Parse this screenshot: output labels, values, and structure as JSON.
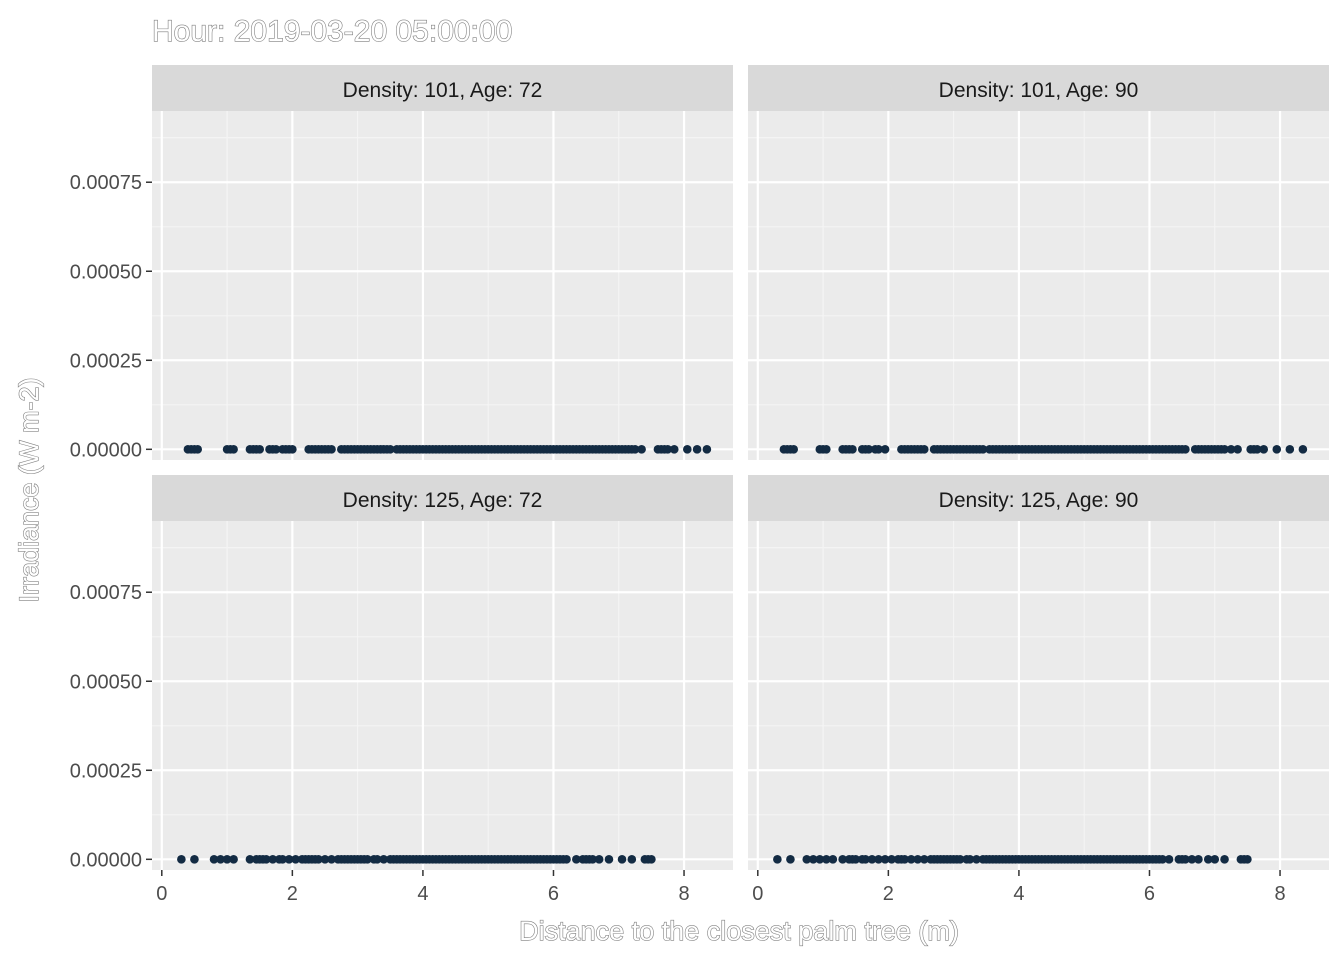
{
  "chart_data": {
    "type": "scatter",
    "title": "Hour: 2019-03-20 05:00:00",
    "xlabel": "Distance to the closest palm tree (m)",
    "ylabel": "Irradiance (W m-2)",
    "xlim": [
      -0.15,
      8.75
    ],
    "ylim": [
      -3e-05,
      0.00095
    ],
    "x_ticks": [
      0,
      2,
      4,
      6,
      8
    ],
    "x_tick_labels": [
      "0",
      "2",
      "4",
      "6",
      "8"
    ],
    "y_ticks": [
      0,
      0.00025,
      0.0005,
      0.00075
    ],
    "y_tick_labels": [
      "0.00000",
      "0.00025",
      "0.00050",
      "0.00075"
    ],
    "grid": true,
    "point_color": "#132B43",
    "panels": [
      {
        "strip": "Density: 101, Age: 72",
        "x": [
          0.4,
          0.45,
          0.5,
          0.55,
          1.0,
          1.05,
          1.1,
          1.35,
          1.4,
          1.45,
          1.5,
          1.65,
          1.7,
          1.75,
          1.85,
          1.9,
          1.95,
          2.0,
          2.25,
          2.3,
          2.35,
          2.4,
          2.45,
          2.5,
          2.55,
          2.6,
          2.75,
          2.8,
          2.85,
          2.9,
          2.95,
          3.0,
          3.05,
          3.1,
          3.15,
          3.2,
          3.25,
          3.3,
          3.35,
          3.4,
          3.45,
          3.5,
          3.6,
          3.65,
          3.7,
          3.75,
          3.8,
          3.85,
          3.9,
          3.95,
          4.0,
          4.05,
          4.1,
          4.15,
          4.2,
          4.25,
          4.3,
          4.35,
          4.4,
          4.45,
          4.5,
          4.55,
          4.6,
          4.65,
          4.7,
          4.75,
          4.8,
          4.85,
          4.9,
          4.95,
          5.0,
          5.05,
          5.1,
          5.15,
          5.2,
          5.25,
          5.3,
          5.35,
          5.4,
          5.45,
          5.5,
          5.55,
          5.6,
          5.65,
          5.7,
          5.75,
          5.8,
          5.85,
          5.9,
          5.95,
          6.0,
          6.05,
          6.1,
          6.15,
          6.2,
          6.25,
          6.3,
          6.35,
          6.4,
          6.45,
          6.5,
          6.55,
          6.6,
          6.65,
          6.7,
          6.75,
          6.8,
          6.85,
          6.9,
          6.95,
          7.0,
          7.05,
          7.1,
          7.15,
          7.2,
          7.25,
          7.35,
          7.6,
          7.65,
          7.7,
          7.75,
          7.85,
          8.05,
          8.2,
          8.35
        ],
        "y_value": 0
      },
      {
        "strip": "Density: 101, Age: 90",
        "x": [
          0.4,
          0.45,
          0.5,
          0.55,
          0.95,
          1.0,
          1.05,
          1.3,
          1.35,
          1.4,
          1.45,
          1.6,
          1.65,
          1.7,
          1.8,
          1.85,
          1.95,
          2.2,
          2.25,
          2.3,
          2.35,
          2.4,
          2.45,
          2.5,
          2.55,
          2.7,
          2.75,
          2.8,
          2.85,
          2.9,
          2.95,
          3.0,
          3.05,
          3.1,
          3.15,
          3.2,
          3.25,
          3.3,
          3.35,
          3.4,
          3.45,
          3.55,
          3.6,
          3.65,
          3.7,
          3.75,
          3.8,
          3.85,
          3.9,
          3.95,
          4.0,
          4.05,
          4.1,
          4.15,
          4.2,
          4.25,
          4.3,
          4.35,
          4.4,
          4.45,
          4.5,
          4.55,
          4.6,
          4.65,
          4.7,
          4.75,
          4.8,
          4.85,
          4.9,
          4.95,
          5.0,
          5.05,
          5.1,
          5.15,
          5.2,
          5.25,
          5.3,
          5.35,
          5.4,
          5.45,
          5.5,
          5.55,
          5.6,
          5.65,
          5.7,
          5.75,
          5.8,
          5.85,
          5.9,
          5.95,
          6.0,
          6.05,
          6.1,
          6.15,
          6.2,
          6.25,
          6.3,
          6.35,
          6.4,
          6.45,
          6.5,
          6.55,
          6.7,
          6.75,
          6.8,
          6.85,
          6.9,
          6.95,
          7.0,
          7.05,
          7.1,
          7.15,
          7.25,
          7.35,
          7.55,
          7.6,
          7.65,
          7.75,
          7.95,
          8.15,
          8.35
        ],
        "y_value": 0
      },
      {
        "strip": "Density: 125, Age: 72",
        "x": [
          0.3,
          0.5,
          0.8,
          0.9,
          1.0,
          1.1,
          1.35,
          1.45,
          1.5,
          1.55,
          1.6,
          1.7,
          1.8,
          1.85,
          1.95,
          2.05,
          2.15,
          2.2,
          2.25,
          2.3,
          2.35,
          2.4,
          2.5,
          2.6,
          2.7,
          2.75,
          2.8,
          2.85,
          2.9,
          2.95,
          3.0,
          3.05,
          3.1,
          3.15,
          3.25,
          3.3,
          3.4,
          3.5,
          3.55,
          3.6,
          3.65,
          3.7,
          3.75,
          3.8,
          3.85,
          3.9,
          3.95,
          4.0,
          4.05,
          4.1,
          4.15,
          4.2,
          4.25,
          4.3,
          4.35,
          4.4,
          4.45,
          4.5,
          4.55,
          4.6,
          4.65,
          4.7,
          4.75,
          4.8,
          4.85,
          4.9,
          4.95,
          5.0,
          5.05,
          5.1,
          5.15,
          5.2,
          5.25,
          5.3,
          5.35,
          5.4,
          5.45,
          5.5,
          5.55,
          5.6,
          5.65,
          5.7,
          5.75,
          5.8,
          5.85,
          5.9,
          5.95,
          6.0,
          6.05,
          6.1,
          6.15,
          6.2,
          6.35,
          6.45,
          6.5,
          6.55,
          6.6,
          6.7,
          6.85,
          7.05,
          7.2,
          7.4,
          7.45,
          7.5
        ],
        "y_value": 0
      },
      {
        "strip": "Density: 125, Age: 90",
        "x": [
          0.3,
          0.5,
          0.75,
          0.85,
          0.95,
          1.05,
          1.15,
          1.3,
          1.4,
          1.45,
          1.5,
          1.6,
          1.65,
          1.75,
          1.85,
          1.95,
          2.05,
          2.15,
          2.2,
          2.25,
          2.35,
          2.45,
          2.55,
          2.65,
          2.7,
          2.75,
          2.8,
          2.85,
          2.9,
          2.95,
          3.0,
          3.05,
          3.1,
          3.2,
          3.25,
          3.35,
          3.45,
          3.5,
          3.55,
          3.6,
          3.65,
          3.7,
          3.75,
          3.8,
          3.85,
          3.9,
          3.95,
          4.0,
          4.05,
          4.1,
          4.15,
          4.2,
          4.25,
          4.3,
          4.35,
          4.4,
          4.45,
          4.5,
          4.55,
          4.6,
          4.65,
          4.7,
          4.75,
          4.8,
          4.85,
          4.9,
          4.95,
          5.0,
          5.05,
          5.1,
          5.15,
          5.2,
          5.25,
          5.3,
          5.35,
          5.4,
          5.45,
          5.5,
          5.55,
          5.6,
          5.65,
          5.7,
          5.75,
          5.8,
          5.85,
          5.9,
          5.95,
          6.0,
          6.05,
          6.1,
          6.15,
          6.2,
          6.3,
          6.45,
          6.5,
          6.55,
          6.65,
          6.75,
          6.9,
          7.0,
          7.15,
          7.4,
          7.45,
          7.5
        ],
        "y_value": 0
      }
    ]
  }
}
